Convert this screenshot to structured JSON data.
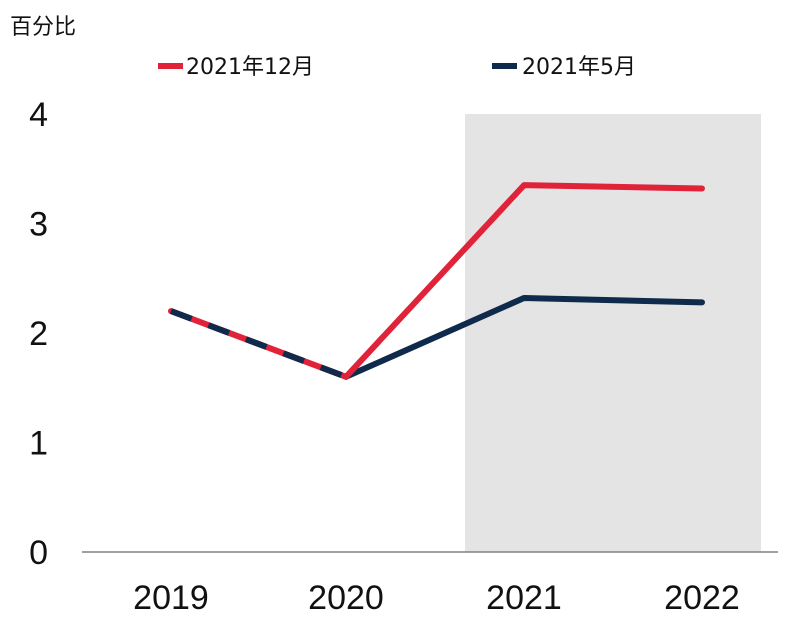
{
  "chart_data": {
    "type": "line",
    "unit_label": "百分比",
    "categories": [
      "2019",
      "2020",
      "2021",
      "2022"
    ],
    "series": [
      {
        "name": "2021年12月",
        "values": [
          2.2,
          1.6,
          3.35,
          3.32
        ],
        "color": "#e1233a"
      },
      {
        "name": "2021年5月",
        "values": [
          2.2,
          1.6,
          2.32,
          2.28
        ],
        "color": "#0f2a4a"
      }
    ],
    "ylim": [
      0,
      4
    ],
    "yticks": [
      "0",
      "1",
      "2",
      "3",
      "4"
    ],
    "shaded_categories": [
      "2021",
      "2022"
    ],
    "shade_color": "#e4e4e4",
    "grid": false,
    "legend_position": "top"
  }
}
